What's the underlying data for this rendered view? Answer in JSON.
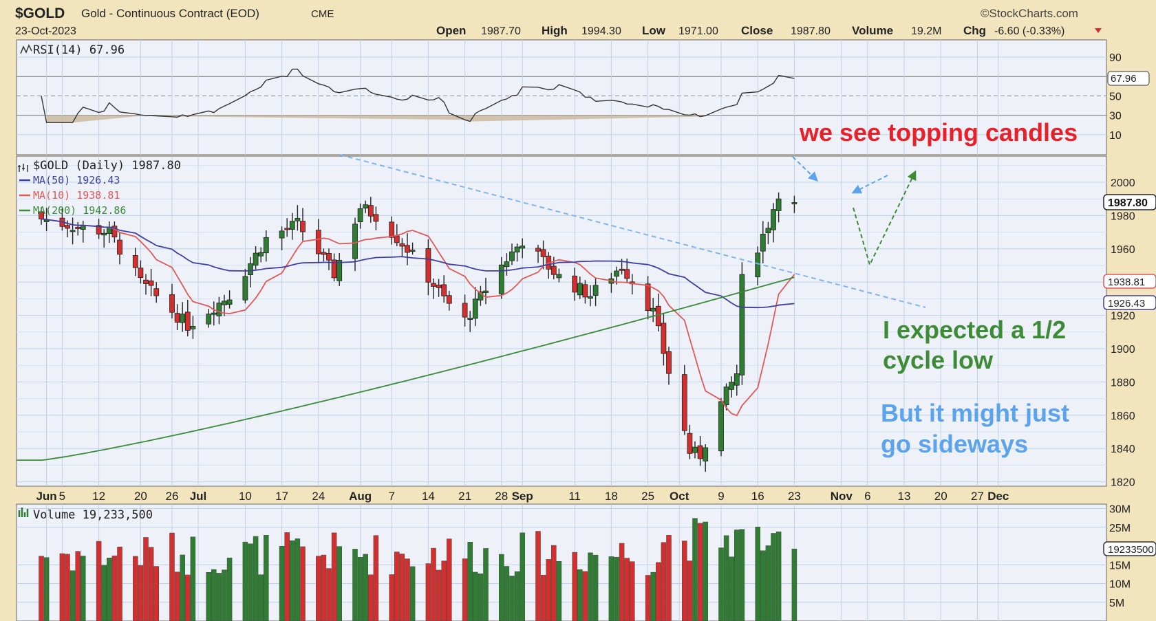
{
  "header": {
    "symbol": "$GOLD",
    "name": "Gold - Continuous Contract (EOD)",
    "exchange": "CME",
    "date": "23-Oct-2023",
    "copyright": "©StockCharts.com",
    "quote": {
      "open_label": "Open",
      "open": "1987.70",
      "high_label": "High",
      "high": "1994.30",
      "low_label": "Low",
      "low": "1971.00",
      "close_label": "Close",
      "close": "1987.80",
      "volume_label": "Volume",
      "volume": "19.2M",
      "chg_label": "Chg",
      "chg": "-6.60 (-0.33%)"
    }
  },
  "colors": {
    "background": "#f2e4bd",
    "plot_bg": "#eef1f8",
    "grid": "#bcd3ea",
    "up": "#2e7d32",
    "down": "#d32f2f",
    "ma50": "#3f3fa0",
    "ma10": "#e05858",
    "ma200": "#3a8a3a",
    "trendline": "#7eb5ec",
    "annotation_red": "#e8202a",
    "annotation_green": "#3d8b37",
    "annotation_blue": "#5ba3ec"
  },
  "rsi_panel": {
    "legend": "RSI(14) 67.96",
    "ticks": [
      "90",
      "50",
      "30",
      "10"
    ],
    "current": "67.96"
  },
  "price_panel": {
    "legend": "$GOLD (Daily) 1987.80",
    "ma50_legend": "MA(50) 1926.43",
    "ma10_legend": "MA(10) 1938.81",
    "ma200_legend": "MA(200) 1942.86",
    "ticks": [
      "2000",
      "1980",
      "1960",
      "1940",
      "1920",
      "1900",
      "1880",
      "1860",
      "1840",
      "1820"
    ],
    "badges": {
      "close": "1987.80",
      "ma10": "1938.81",
      "ma50": "1926.43",
      "ma200": "1942.86"
    }
  },
  "volume_panel": {
    "legend": "Volume 19,233,500",
    "ticks": [
      "30M",
      "25M",
      "15M",
      "10M",
      "5M"
    ],
    "badge": "19233500"
  },
  "x_axis": {
    "labels": [
      {
        "text": "Jun",
        "bold": true
      },
      {
        "text": "5",
        "bold": false
      },
      {
        "text": "12",
        "bold": false
      },
      {
        "text": "20",
        "bold": false
      },
      {
        "text": "26",
        "bold": false
      },
      {
        "text": "Jul",
        "bold": true
      },
      {
        "text": "10",
        "bold": false
      },
      {
        "text": "17",
        "bold": false
      },
      {
        "text": "24",
        "bold": false
      },
      {
        "text": "Aug",
        "bold": true
      },
      {
        "text": "7",
        "bold": false
      },
      {
        "text": "14",
        "bold": false
      },
      {
        "text": "21",
        "bold": false
      },
      {
        "text": "28",
        "bold": false
      },
      {
        "text": "Sep",
        "bold": true
      },
      {
        "text": "11",
        "bold": false
      },
      {
        "text": "18",
        "bold": false
      },
      {
        "text": "25",
        "bold": false
      },
      {
        "text": "Oct",
        "bold": true
      },
      {
        "text": "9",
        "bold": false
      },
      {
        "text": "16",
        "bold": false
      },
      {
        "text": "23",
        "bold": false
      },
      {
        "text": "Nov",
        "bold": true
      },
      {
        "text": "6",
        "bold": false
      },
      {
        "text": "13",
        "bold": false
      },
      {
        "text": "20",
        "bold": false
      },
      {
        "text": "27",
        "bold": false
      },
      {
        "text": "Dec",
        "bold": true
      }
    ]
  },
  "annotations": {
    "topping": "we see topping candles",
    "expected_line1": "I expected a 1/2",
    "expected_line2": "cycle low",
    "sideways_line1": "But it might just",
    "sideways_line2": "go sideways"
  },
  "chart_data": {
    "type": "candlestick",
    "x_start": "2023-06-01",
    "x_end": "2023-10-23",
    "ylim": [
      1815,
      2010
    ],
    "price_series_approx": [
      {
        "date": "2023-06-01",
        "close": 1978
      },
      {
        "date": "2023-06-08",
        "close": 1973
      },
      {
        "date": "2023-06-14",
        "close": 1970
      },
      {
        "date": "2023-06-20",
        "close": 1940
      },
      {
        "date": "2023-06-29",
        "close": 1914
      },
      {
        "date": "2023-07-07",
        "close": 1932
      },
      {
        "date": "2023-07-14",
        "close": 1966
      },
      {
        "date": "2023-07-20",
        "close": 1975
      },
      {
        "date": "2023-07-27",
        "close": 1945
      },
      {
        "date": "2023-08-01",
        "close": 1985
      },
      {
        "date": "2023-08-04",
        "close": 1980
      },
      {
        "date": "2023-08-10",
        "close": 1960
      },
      {
        "date": "2023-08-17",
        "close": 1930
      },
      {
        "date": "2023-08-21",
        "close": 1917
      },
      {
        "date": "2023-08-28",
        "close": 1950
      },
      {
        "date": "2023-09-01",
        "close": 1965
      },
      {
        "date": "2023-09-08",
        "close": 1943
      },
      {
        "date": "2023-09-14",
        "close": 1932
      },
      {
        "date": "2023-09-20",
        "close": 1950
      },
      {
        "date": "2023-09-26",
        "close": 1922
      },
      {
        "date": "2023-10-03",
        "close": 1838
      },
      {
        "date": "2023-10-05",
        "close": 1836
      },
      {
        "date": "2023-10-09",
        "close": 1867
      },
      {
        "date": "2023-10-12",
        "close": 1885
      },
      {
        "date": "2023-10-13",
        "close": 1941
      },
      {
        "date": "2023-10-18",
        "close": 1975
      },
      {
        "date": "2023-10-20",
        "close": 1994
      },
      {
        "date": "2023-10-23",
        "open": 1987.7,
        "high": 1994.3,
        "low": 1971.0,
        "close": 1987.8
      }
    ],
    "ma50": 1926.43,
    "ma10": 1938.81,
    "ma200": 1942.86,
    "rsi14": 67.96,
    "volume_last": 19233500
  }
}
